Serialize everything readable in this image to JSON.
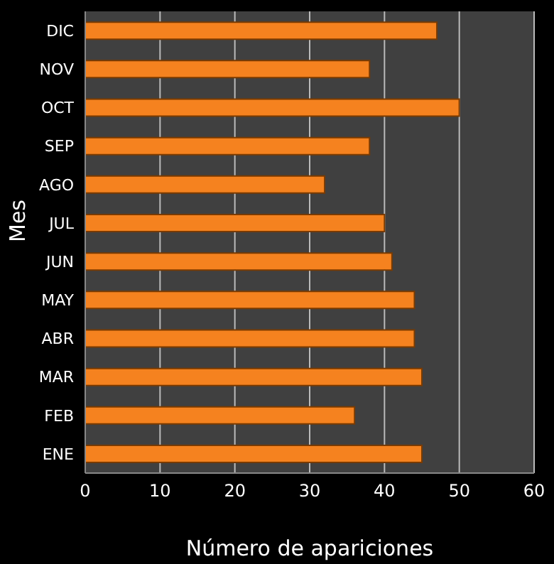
{
  "chart_data": {
    "type": "bar",
    "orientation": "horizontal",
    "xlabel": "Número de apariciones",
    "ylabel": "Mes",
    "categories": [
      "DIC",
      "NOV",
      "OCT",
      "SEP",
      "AGO",
      "JUL",
      "JUN",
      "MAY",
      "ABR",
      "MAR",
      "FEB",
      "ENE"
    ],
    "values": [
      47,
      38,
      50,
      38,
      32,
      40,
      41,
      44,
      44,
      45,
      36,
      45
    ],
    "color": "#f5821f",
    "xlim": [
      0,
      60
    ],
    "xticks": [
      0,
      10,
      20,
      30,
      40,
      50,
      60
    ],
    "grid": "x"
  }
}
